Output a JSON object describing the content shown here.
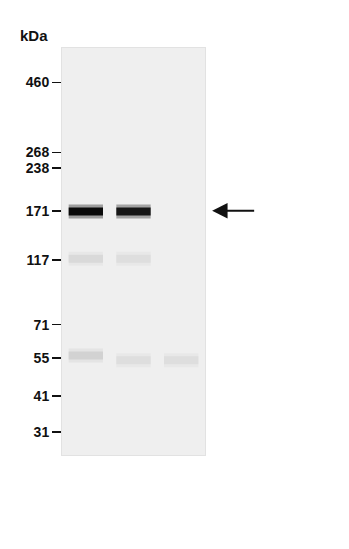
{
  "chart_data": {
    "type": "western_blot",
    "y_label": "kDa",
    "log": "y",
    "ylim": [
      26,
      600
    ],
    "yticks": [
      460,
      268,
      238,
      171,
      117,
      71,
      55,
      41,
      31
    ],
    "xlim": [
      0.5,
      3.5
    ],
    "tick_labels": "y",
    "lanes": [
      1,
      2,
      3
    ],
    "bands": [
      {
        "lane": 1,
        "kDa": 170,
        "intensity": 1
      },
      {
        "lane": 2,
        "kDa": 170,
        "intensity": 0.95
      },
      {
        "lane": 1,
        "kDa": 118,
        "intensity": 0.12
      },
      {
        "lane": 2,
        "kDa": 118,
        "intensity": 0.1
      },
      {
        "lane": 1,
        "kDa": 56,
        "intensity": 0.15
      },
      {
        "lane": 2,
        "kDa": 54,
        "intensity": 0.1
      },
      {
        "lane": 3,
        "kDa": 54,
        "intensity": 0.1
      }
    ],
    "arrow_kDa": 171
  }
}
